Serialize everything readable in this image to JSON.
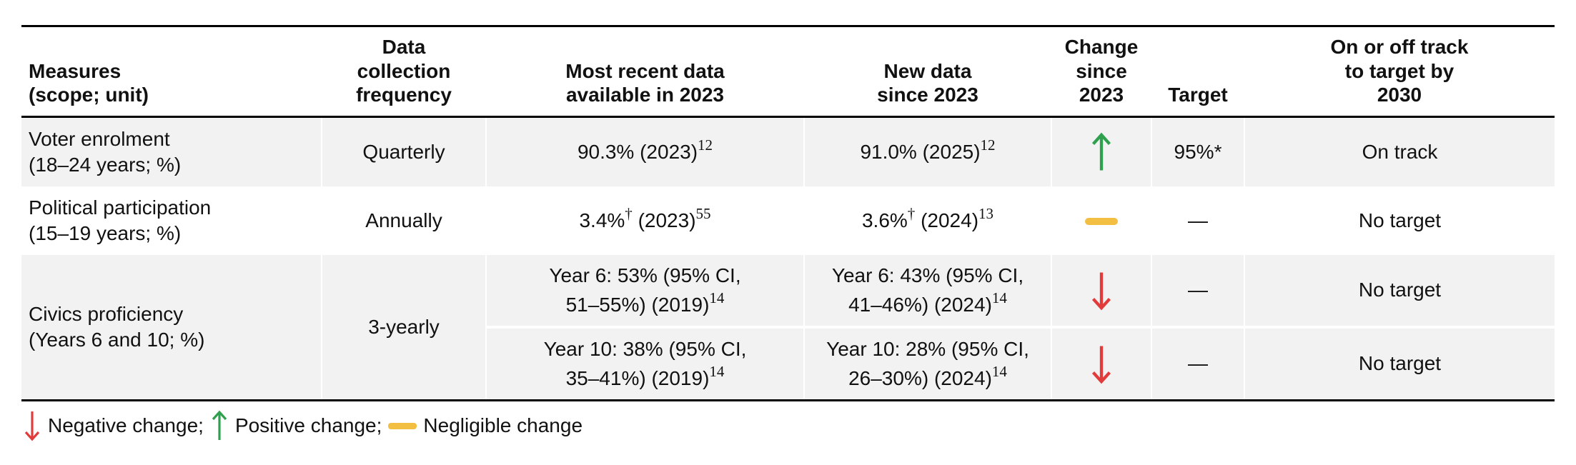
{
  "colors": {
    "positive": "#2fa04e",
    "negative": "#e23b3b",
    "negligible": "#f2bf42",
    "row_shade": "#f2f2f2",
    "rule": "#000000"
  },
  "header": {
    "measures": "Measures\n(scope; unit)",
    "frequency": "Data\ncollection\nfrequency",
    "recent": "Most recent data\navailable in 2023",
    "new_data": "New data\nsince 2023",
    "change": "Change\nsince\n2023",
    "target": "Target",
    "track": "On or off track\nto target by\n2030"
  },
  "rows": [
    {
      "measure": "Voter enrolment\n(18–24 years; %)",
      "frequency": "Quarterly",
      "recent": [
        {
          "t": "90.3% (2023)"
        },
        {
          "sup": "12"
        }
      ],
      "new_data": [
        {
          "t": "91.0% (2025)"
        },
        {
          "sup": "12"
        }
      ],
      "change": "positive",
      "target": "95%*",
      "track": "On track"
    },
    {
      "measure": "Political participation\n(15–19 years; %)",
      "frequency": "Annually",
      "recent": [
        {
          "t": "3.4%"
        },
        {
          "sup": "†"
        },
        {
          "t": " (2023)"
        },
        {
          "sup": "55"
        }
      ],
      "new_data": [
        {
          "t": "3.6%"
        },
        {
          "sup": "†"
        },
        {
          "t": " (2024)"
        },
        {
          "sup": "13"
        }
      ],
      "change": "negligible",
      "target": "—",
      "track": "No target"
    },
    {
      "measure": "Civics proficiency\n(Years 6 and 10; %)",
      "frequency": "3-yearly",
      "subrows": [
        {
          "recent": [
            {
              "t": "Year 6: 53% (95% CI,\n51–55%) (2019)"
            },
            {
              "sup": "14"
            }
          ],
          "new_data": [
            {
              "t": "Year 6: 43% (95% CI,\n41–46%) (2024)"
            },
            {
              "sup": "14"
            }
          ],
          "change": "negative",
          "target": "—",
          "track": "No target"
        },
        {
          "recent": [
            {
              "t": "Year 10: 38% (95% CI,\n35–41%) (2019)"
            },
            {
              "sup": "14"
            }
          ],
          "new_data": [
            {
              "t": "Year 10: 28% (95% CI,\n26–30%) (2024)"
            },
            {
              "sup": "14"
            }
          ],
          "change": "negative",
          "target": "—",
          "track": "No target"
        }
      ]
    }
  ],
  "legend": [
    {
      "icon": "down-arrow",
      "label": "Negative change;"
    },
    {
      "icon": "up-arrow",
      "label": "Positive change;"
    },
    {
      "icon": "dash",
      "label": "Negligible change"
    }
  ]
}
